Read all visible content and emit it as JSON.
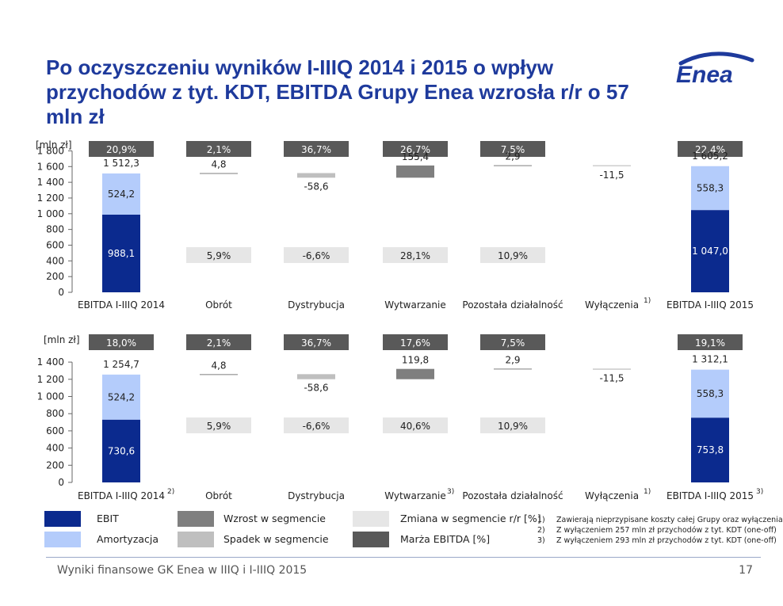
{
  "title": "Po oczyszczeniu wyników I-IIIQ 2014 i 2015 o wpływ przychodów z tyt. KDT, EBITDA Grupy Enea wzrosła r/r o 57 mln zł",
  "logo_text": "Enea",
  "colors": {
    "ebit": "#0b2a8e",
    "amortization": "#b4ccfb",
    "increase": "#7f7f7f",
    "decrease": "#bfbfbf",
    "yoy_change": "#e6e6e6",
    "margin": "#595959"
  },
  "chart_data": [
    {
      "type": "bar",
      "unit_label": "[mln zł]",
      "yticks": [
        "1 800",
        "1 600",
        "1 400",
        "1 200",
        "1 000",
        "800",
        "600",
        "400",
        "200",
        "0"
      ],
      "ylim": [
        0,
        1800
      ],
      "categories": [
        "EBITDA I-IIIQ 2014",
        "Obrót",
        "Dystrybucja",
        "Wytwarzanie",
        "Pozostała działalność",
        "Wyłączenia",
        "EBITDA I-IIIQ 2015"
      ],
      "category_superscripts": [
        "",
        "",
        "",
        "",
        "",
        "1)",
        ""
      ],
      "top_badges": [
        "20,9%",
        "2,1%",
        "36,7%",
        "26,7%",
        "7,5%",
        "",
        "22,4%"
      ],
      "mid_badges": [
        "",
        "5,9%",
        "-6,6%",
        "28,1%",
        "10,9%",
        "",
        ""
      ],
      "ebit": [
        988.1,
        null,
        null,
        null,
        null,
        null,
        1047.0
      ],
      "amortization": [
        524.2,
        null,
        null,
        null,
        null,
        null,
        558.3
      ],
      "totals": [
        1512.3,
        null,
        null,
        null,
        null,
        null,
        1605.2
      ],
      "changes": [
        null,
        4.8,
        -58.6,
        155.4,
        2.9,
        -11.5,
        null
      ],
      "labels": {
        "ebit": [
          "988,1",
          "",
          "",
          "",
          "",
          "",
          "1 047,0"
        ],
        "amortization": [
          "524,2",
          "",
          "",
          "",
          "",
          "",
          "558,3"
        ],
        "totals": [
          "1 512,3",
          "4,8",
          "-58,6",
          "155,4",
          "2,9",
          "-11,5",
          "1 605,2"
        ]
      }
    },
    {
      "type": "bar",
      "unit_label": "[mln zł]",
      "yticks": [
        "1 400",
        "1 200",
        "1 000",
        "800",
        "600",
        "400",
        "200",
        "0"
      ],
      "ylim": [
        0,
        1400
      ],
      "categories": [
        "EBITDA I-IIIQ 2014",
        "Obrót",
        "Dystrybucja",
        "Wytwarzanie",
        "Pozostała działalność",
        "Wyłączenia",
        "EBITDA I-IIIQ 2015"
      ],
      "category_superscripts": [
        "2)",
        "",
        "",
        "3)",
        "",
        "1)",
        "3)"
      ],
      "top_badges": [
        "18,0%",
        "2,1%",
        "36,7%",
        "17,6%",
        "7,5%",
        "",
        "19,1%"
      ],
      "mid_badges": [
        "",
        "5,9%",
        "-6,6%",
        "40,6%",
        "10,9%",
        "",
        ""
      ],
      "ebit": [
        730.6,
        null,
        null,
        null,
        null,
        null,
        753.8
      ],
      "amortization": [
        524.2,
        null,
        null,
        null,
        null,
        null,
        558.3
      ],
      "totals": [
        1254.7,
        null,
        null,
        null,
        null,
        null,
        1312.1
      ],
      "changes": [
        null,
        4.8,
        -58.6,
        119.8,
        2.9,
        -11.5,
        null
      ],
      "labels": {
        "ebit": [
          "730,6",
          "",
          "",
          "",
          "",
          "",
          "753,8"
        ],
        "amortization": [
          "524,2",
          "",
          "",
          "",
          "",
          "",
          "558,3"
        ],
        "totals": [
          "1 254,7",
          "4,8",
          "-58,6",
          "119,8",
          "2,9",
          "-11,5",
          "1 312,1"
        ]
      }
    }
  ],
  "legend": [
    {
      "label": "EBIT",
      "color": "#0b2a8e"
    },
    {
      "label": "Amortyzacja",
      "color": "#b4ccfb"
    },
    {
      "label": "Wzrost w segmencie",
      "color": "#7f7f7f"
    },
    {
      "label": "Spadek w segmencie",
      "color": "#bfbfbf"
    },
    {
      "label": "Zmiana w segmencie r/r [%]",
      "color": "#e6e6e6"
    },
    {
      "label": "Marża EBITDA [%]",
      "color": "#595959"
    }
  ],
  "notes": [
    {
      "num": "1)",
      "text": "Zawierają nieprzypisane koszty całej Grupy oraz wyłączenia"
    },
    {
      "num": "2)",
      "text": "Z wyłączeniem 257 mln zł przychodów z tyt. KDT (one-off)"
    },
    {
      "num": "3)",
      "text": "Z wyłączeniem 293 mln zł przychodów z tyt. KDT (one-off)"
    }
  ],
  "footer": {
    "left": "Wyniki finansowe GK Enea w IIIQ i I-IIIQ 2015",
    "page": "17"
  }
}
